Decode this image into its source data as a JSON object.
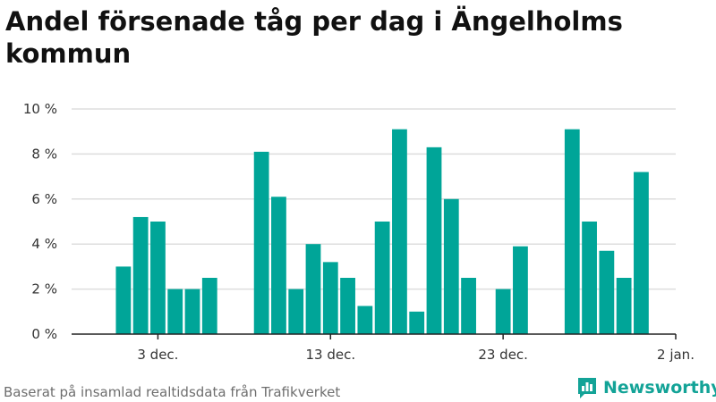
{
  "title": "Andel försenade tåg per dag i Ängelholms kommun",
  "source": "Baserat på insamlad realtidsdata från Trafikverket",
  "brand": {
    "name": "Newsworthy",
    "icon": "newsworthy-logo-icon"
  },
  "colors": {
    "bar": "#00a598",
    "grid": "#dddddd",
    "axis": "#222222",
    "text": "#333333",
    "brand": "#13a397"
  },
  "chart_data": {
    "type": "bar",
    "title": "Andel försenade tåg per dag i Ängelholms kommun",
    "xlabel": "",
    "ylabel": "",
    "ylim": [
      0,
      10
    ],
    "yticks": [
      {
        "value": 0,
        "label": "0 %"
      },
      {
        "value": 2,
        "label": "2 %"
      },
      {
        "value": 4,
        "label": "4 %"
      },
      {
        "value": 6,
        "label": "6 %"
      },
      {
        "value": 8,
        "label": "8 %"
      },
      {
        "value": 10,
        "label": "10 %"
      }
    ],
    "x_domain": [
      "2019-11-28",
      "2020-01-02"
    ],
    "xticks": [
      {
        "date": "2019-12-03",
        "label": "3 dec."
      },
      {
        "date": "2019-12-13",
        "label": "13 dec."
      },
      {
        "date": "2019-12-23",
        "label": "23 dec."
      },
      {
        "date": "2020-01-02",
        "label": "2 jan."
      }
    ],
    "grid": true,
    "legend": "none",
    "values": [
      {
        "date": "2019-12-01",
        "value": 3.0
      },
      {
        "date": "2019-12-02",
        "value": 5.2
      },
      {
        "date": "2019-12-03",
        "value": 5.0
      },
      {
        "date": "2019-12-04",
        "value": 2.0
      },
      {
        "date": "2019-12-05",
        "value": 2.0
      },
      {
        "date": "2019-12-06",
        "value": 2.5
      },
      {
        "date": "2019-12-09",
        "value": 8.1
      },
      {
        "date": "2019-12-10",
        "value": 6.1
      },
      {
        "date": "2019-12-11",
        "value": 2.0
      },
      {
        "date": "2019-12-12",
        "value": 4.0
      },
      {
        "date": "2019-12-13",
        "value": 3.2
      },
      {
        "date": "2019-12-14",
        "value": 2.5
      },
      {
        "date": "2019-12-15",
        "value": 1.25
      },
      {
        "date": "2019-12-16",
        "value": 5.0
      },
      {
        "date": "2019-12-17",
        "value": 9.1
      },
      {
        "date": "2019-12-18",
        "value": 1.0
      },
      {
        "date": "2019-12-19",
        "value": 8.3
      },
      {
        "date": "2019-12-20",
        "value": 6.0
      },
      {
        "date": "2019-12-21",
        "value": 2.5
      },
      {
        "date": "2019-12-23",
        "value": 2.0
      },
      {
        "date": "2019-12-24",
        "value": 3.9
      },
      {
        "date": "2019-12-27",
        "value": 9.1
      },
      {
        "date": "2019-12-28",
        "value": 5.0
      },
      {
        "date": "2019-12-29",
        "value": 3.7
      },
      {
        "date": "2019-12-30",
        "value": 2.5
      },
      {
        "date": "2019-12-31",
        "value": 7.2
      }
    ]
  }
}
